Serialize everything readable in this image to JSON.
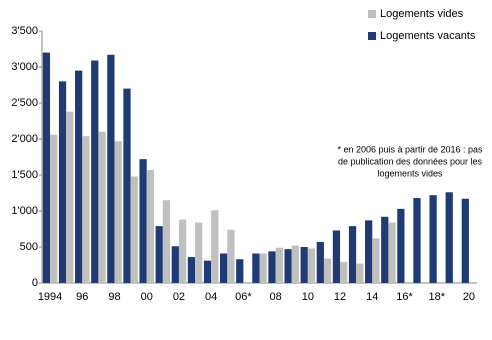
{
  "chart_data": {
    "type": "bar",
    "categories": [
      "1994",
      null,
      "96",
      null,
      "98",
      null,
      "00",
      null,
      "02",
      null,
      "04",
      null,
      "06*",
      null,
      "08",
      null,
      "10",
      null,
      "12",
      null,
      "14",
      null,
      "16*",
      null,
      "18*",
      null,
      "20"
    ],
    "series": [
      {
        "name": "Logements vacants",
        "color": "#1f3b73",
        "values": [
          3200,
          2800,
          2950,
          3090,
          3170,
          2700,
          1720,
          790,
          510,
          360,
          310,
          410,
          330,
          410,
          440,
          470,
          500,
          570,
          730,
          790,
          870,
          920,
          1030,
          1180,
          1220,
          1260,
          1170
        ]
      },
      {
        "name": "Logements vides",
        "color": "#c0c0c0",
        "values": [
          2060,
          2380,
          2040,
          2100,
          1970,
          1480,
          1570,
          1150,
          880,
          840,
          1010,
          740,
          null,
          410,
          490,
          520,
          480,
          340,
          290,
          270,
          620,
          840,
          null,
          null,
          null,
          null,
          null
        ]
      }
    ],
    "legend_order": [
      1,
      0
    ],
    "ylim": [
      0,
      3500
    ],
    "yticks": [
      0,
      {
        "value": 500,
        "label": "500"
      },
      {
        "value": 1000,
        "label": "1'000"
      },
      {
        "value": 1500,
        "label": "1'500"
      },
      {
        "value": 2000,
        "label": "2'000"
      },
      {
        "value": 2500,
        "label": "2'500"
      },
      {
        "value": 3000,
        "label": "3'000"
      },
      {
        "value": 3500,
        "label": "3'500"
      }
    ],
    "grid": false,
    "annotation": [
      "* en 2006 puis à partir de 2016 : pas",
      "de publication des données  pour les",
      "logements vides"
    ]
  }
}
